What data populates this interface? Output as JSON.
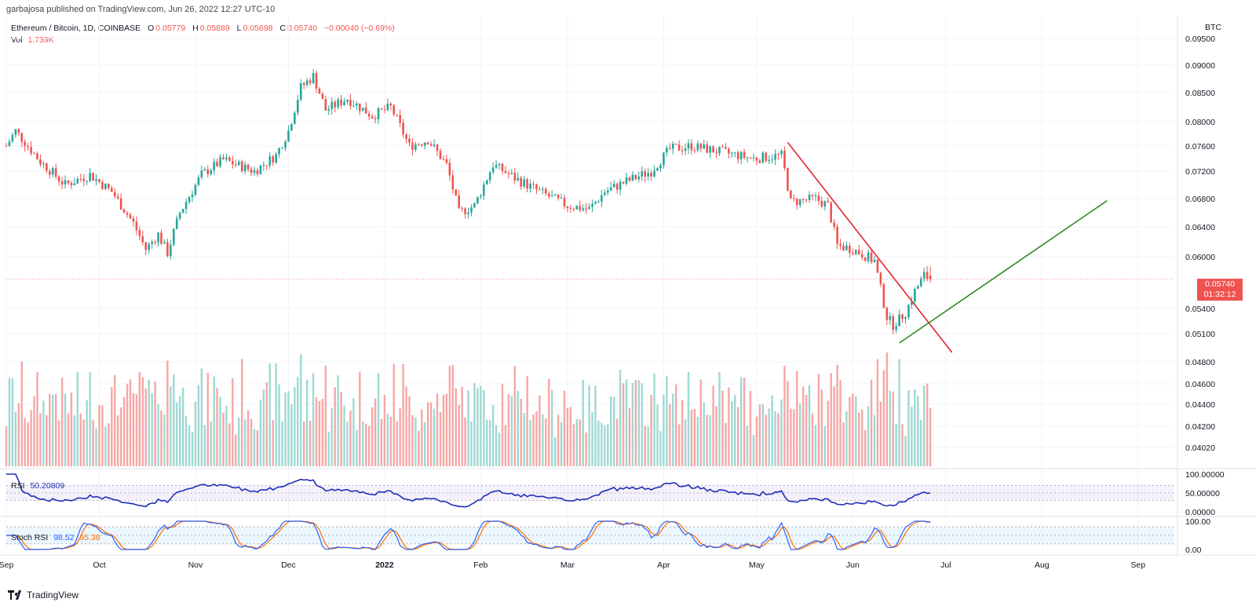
{
  "header": {
    "published": "garbajosa published on TradingView.com, Jun 26, 2022 12:27 UTC-10",
    "symbol": "Ethereum / Bitcoin, 1D, COINBASE",
    "o_label": "O",
    "o_value": "0.05779",
    "h_label": "H",
    "h_value": "0.05889",
    "l_label": "L",
    "l_value": "0.05698",
    "c_label": "C",
    "c_value": "0.05740",
    "change": "−0.00040 (−0.69%)",
    "vol_label": "Vol",
    "vol_value": "1.739K"
  },
  "price_axis": {
    "currency": "BTC",
    "ticks": [
      "0.09500",
      "0.09000",
      "0.08500",
      "0.08000",
      "0.07600",
      "0.07200",
      "0.06800",
      "0.06400",
      "0.06000",
      "0.05400",
      "0.05100",
      "0.04800",
      "0.04600",
      "0.04400",
      "0.04200",
      "0.04020"
    ],
    "last_price": "0.05740",
    "countdown": "01:32:12"
  },
  "time_axis": [
    "Sep",
    "Oct",
    "Nov",
    "Dec",
    "2022",
    "Feb",
    "Mar",
    "Apr",
    "May",
    "Jun",
    "Jul",
    "Aug",
    "Sep"
  ],
  "rsi": {
    "label": "RSI",
    "value": "50.20809",
    "ticks": [
      "100.00000",
      "50.00000",
      "0.00000"
    ]
  },
  "stoch": {
    "label": "Stoch RSI",
    "k": "98.52",
    "d": "95.38",
    "ticks": [
      "100.00",
      "0.00"
    ]
  },
  "footer": {
    "brand": "TradingView"
  },
  "colors": {
    "up": "#26a69a",
    "down": "#ef5350",
    "vol_up": "#9fd8d2",
    "vol_down": "#f5a7a5",
    "rsi_line": "#1f2db7",
    "stoch_k": "#2962ff",
    "stoch_d": "#ff6d00",
    "trend_down": "#e0262d",
    "trend_up": "#2e8b22"
  },
  "chart_data": {
    "type": "candlestick",
    "symbol": "Ethereum / Bitcoin",
    "interval": "1D",
    "exchange": "COINBASE",
    "y_axis": "BTC",
    "ohlc": {
      "open": 0.05779,
      "high": 0.05889,
      "low": 0.05698,
      "close": 0.0574,
      "change": -0.0004,
      "change_pct": -0.69
    },
    "volume_last": "1.739K",
    "close_path": [
      {
        "date": "2021-09-01",
        "close": 0.076
      },
      {
        "date": "2021-09-04",
        "close": 0.0785
      },
      {
        "date": "2021-09-12",
        "close": 0.0735
      },
      {
        "date": "2021-09-20",
        "close": 0.07
      },
      {
        "date": "2021-09-28",
        "close": 0.0715
      },
      {
        "date": "2021-10-05",
        "close": 0.069
      },
      {
        "date": "2021-10-12",
        "close": 0.0645
      },
      {
        "date": "2021-10-16",
        "close": 0.061
      },
      {
        "date": "2021-10-20",
        "close": 0.063
      },
      {
        "date": "2021-10-23",
        "close": 0.0605
      },
      {
        "date": "2021-10-27",
        "close": 0.066
      },
      {
        "date": "2021-11-03",
        "close": 0.0715
      },
      {
        "date": "2021-11-10",
        "close": 0.0738
      },
      {
        "date": "2021-11-20",
        "close": 0.072
      },
      {
        "date": "2021-11-27",
        "close": 0.0745
      },
      {
        "date": "2021-12-01",
        "close": 0.0785
      },
      {
        "date": "2021-12-05",
        "close": 0.086
      },
      {
        "date": "2021-12-09",
        "close": 0.088
      },
      {
        "date": "2021-12-13",
        "close": 0.082
      },
      {
        "date": "2021-12-20",
        "close": 0.084
      },
      {
        "date": "2021-12-28",
        "close": 0.081
      },
      {
        "date": "2022-01-03",
        "close": 0.0825
      },
      {
        "date": "2022-01-09",
        "close": 0.076
      },
      {
        "date": "2022-01-15",
        "close": 0.077
      },
      {
        "date": "2022-01-21",
        "close": 0.073
      },
      {
        "date": "2022-01-25",
        "close": 0.066
      },
      {
        "date": "2022-01-30",
        "close": 0.067
      },
      {
        "date": "2022-02-05",
        "close": 0.073
      },
      {
        "date": "2022-02-12",
        "close": 0.071
      },
      {
        "date": "2022-02-20",
        "close": 0.069
      },
      {
        "date": "2022-03-01",
        "close": 0.067
      },
      {
        "date": "2022-03-08",
        "close": 0.0665
      },
      {
        "date": "2022-03-13",
        "close": 0.069
      },
      {
        "date": "2022-03-20",
        "close": 0.0705
      },
      {
        "date": "2022-03-28",
        "close": 0.072
      },
      {
        "date": "2022-04-03",
        "close": 0.0755
      },
      {
        "date": "2022-04-10",
        "close": 0.076
      },
      {
        "date": "2022-04-20",
        "close": 0.075
      },
      {
        "date": "2022-04-30",
        "close": 0.074
      },
      {
        "date": "2022-05-09",
        "close": 0.0745
      },
      {
        "date": "2022-05-12",
        "close": 0.0675
      },
      {
        "date": "2022-05-20",
        "close": 0.068
      },
      {
        "date": "2022-05-24",
        "close": 0.067
      },
      {
        "date": "2022-05-27",
        "close": 0.0615
      },
      {
        "date": "2022-06-01",
        "close": 0.061
      },
      {
        "date": "2022-06-08",
        "close": 0.0595
      },
      {
        "date": "2022-06-12",
        "close": 0.053
      },
      {
        "date": "2022-06-14",
        "close": 0.052
      },
      {
        "date": "2022-06-18",
        "close": 0.0535
      },
      {
        "date": "2022-06-21",
        "close": 0.056
      },
      {
        "date": "2022-06-24",
        "close": 0.0578
      },
      {
        "date": "2022-06-26",
        "close": 0.0574
      }
    ],
    "annotations": [
      {
        "type": "trendline",
        "color": "red",
        "from": {
          "date": "2022-05-11",
          "price": 0.0766
        },
        "to": {
          "date": "2022-07-03",
          "price": 0.049
        }
      },
      {
        "type": "trendline",
        "color": "green",
        "from": {
          "date": "2022-06-16",
          "price": 0.05
        },
        "to": {
          "date": "2022-08-22",
          "price": 0.0677
        }
      }
    ],
    "indicators": {
      "rsi": {
        "value": 50.20809,
        "bands": [
          30,
          70
        ]
      },
      "stoch_rsi": {
        "k": 98.52,
        "d": 95.38,
        "bands": [
          20,
          80
        ]
      }
    }
  }
}
